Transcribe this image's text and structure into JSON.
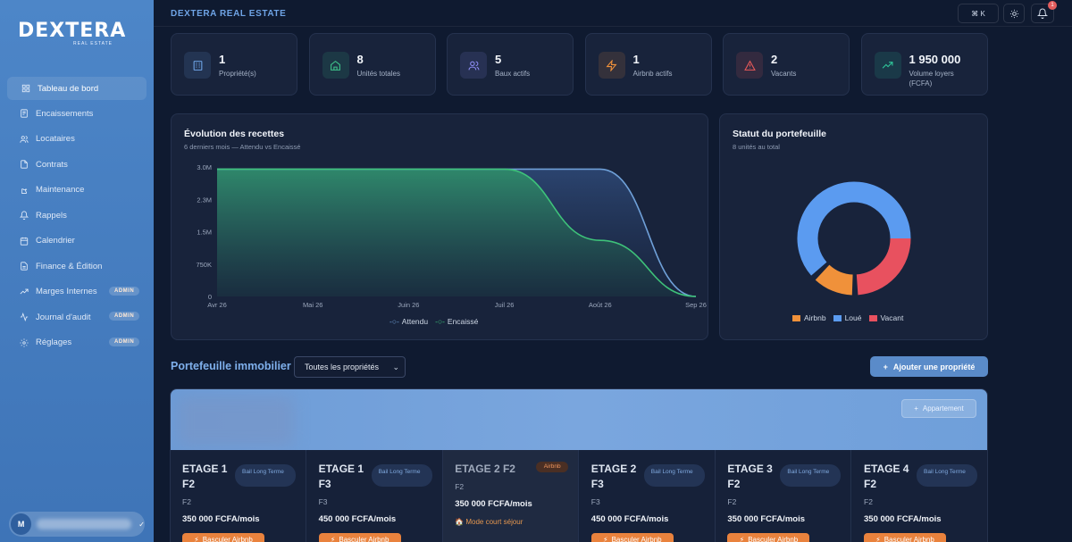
{
  "brand": {
    "logo": "DEXTERA",
    "logo_sub": "REAL ESTATE"
  },
  "sidebar": {
    "items": [
      {
        "label": "Tableau de bord",
        "icon": "grid-icon",
        "active": true
      },
      {
        "label": "Encaissements",
        "icon": "receipt-icon"
      },
      {
        "label": "Locataires",
        "icon": "users-icon"
      },
      {
        "label": "Contrats",
        "icon": "file-icon"
      },
      {
        "label": "Maintenance",
        "icon": "wrench-icon"
      },
      {
        "label": "Rappels",
        "icon": "bell-icon"
      },
      {
        "label": "Calendrier",
        "icon": "calendar-icon"
      },
      {
        "label": "Finance & Édition",
        "icon": "document-icon"
      },
      {
        "label": "Marges Internes",
        "icon": "trending-icon",
        "badge": "ADMIN"
      },
      {
        "label": "Journal d'audit",
        "icon": "activity-icon",
        "badge": "ADMIN"
      },
      {
        "label": "Réglages",
        "icon": "settings-icon",
        "badge": "ADMIN"
      }
    ],
    "user_initial": "M"
  },
  "topbar": {
    "title": "DEXTERA REAL ESTATE",
    "shortcut": "⌘  K",
    "notifications": "1"
  },
  "stats": [
    {
      "value": "1",
      "label": "Propriété(s)",
      "icon": "building-icon",
      "color": "#6fa4e6"
    },
    {
      "value": "8",
      "label": "Unités totales",
      "icon": "home-icon",
      "color": "#3fc28a"
    },
    {
      "value": "5",
      "label": "Baux actifs",
      "icon": "users-icon",
      "color": "#8c8cf2"
    },
    {
      "value": "1",
      "label": "Airbnb actifs",
      "icon": "zap-icon",
      "color": "#f0913a"
    },
    {
      "value": "2",
      "label": "Vacants",
      "icon": "alert-icon",
      "color": "#ea5a5a"
    },
    {
      "value": "1 950 000",
      "label": "Volume loyers (FCFA)",
      "icon": "trending-up-icon",
      "color": "#2fc79a"
    }
  ],
  "revenue_chart": {
    "title": "Évolution des recettes",
    "subtitle": "6 derniers mois — Attendu vs Encaissé"
  },
  "portfolio_chart": {
    "title": "Statut du portefeuille",
    "subtitle": "8 unités au total"
  },
  "chart_data": [
    {
      "type": "area",
      "title": "Évolution des recettes",
      "x": [
        "Avr 26",
        "Mai 26",
        "Juin 26",
        "Juil 26",
        "Août 26",
        "Sep 26"
      ],
      "yticks": [
        "0",
        "750K",
        "1.5M",
        "2.3M",
        "3.0M"
      ],
      "ylim": [
        0,
        3000000
      ],
      "series": [
        {
          "name": "Attendu",
          "color": "#6fa0d8",
          "values": [
            2950000,
            2950000,
            2950000,
            2950000,
            2950000,
            0
          ]
        },
        {
          "name": "Encaissé",
          "color": "#3ec27a",
          "values": [
            2950000,
            2950000,
            2950000,
            2950000,
            1300000,
            0
          ]
        }
      ],
      "legend": "bottom"
    },
    {
      "type": "pie",
      "title": "Statut du portefeuille",
      "categories": [
        "Airbnb",
        "Loué",
        "Vacant"
      ],
      "values": [
        1,
        5,
        2
      ],
      "colors": [
        "#f0913a",
        "#5b9bf0",
        "#e8515f"
      ],
      "legend": "bottom"
    }
  ],
  "portfolio": {
    "title": "Portefeuille immobilier",
    "select_value": "Toutes les propriétés",
    "add_button": "Ajouter une propriété",
    "apartment_button": "Appartement",
    "units": [
      {
        "name": "ETAGE 1 F2",
        "tag": "Bail Long Terme",
        "type": "F2",
        "price": "350 000 FCFA/mois",
        "button": "Basculer Airbnb"
      },
      {
        "name": "ETAGE 1 F3",
        "tag": "Bail Long Terme",
        "type": "F3",
        "price": "450 000 FCFA/mois",
        "button": "Basculer Airbnb"
      },
      {
        "name": "ETAGE 2 F2",
        "tag": "Airbnb",
        "type": "F2",
        "price": "350 000 FCFA/mois",
        "mode": "🏠 Mode court séjour",
        "airbnb": true
      },
      {
        "name": "ETAGE 2 F3",
        "tag": "Bail Long Terme",
        "type": "F3",
        "price": "450 000 FCFA/mois",
        "button": "Basculer Airbnb"
      },
      {
        "name": "ETAGE 3 F2",
        "tag": "Bail Long Terme",
        "type": "F2",
        "price": "350 000 FCFA/mois",
        "button": "Basculer Airbnb"
      },
      {
        "name": "ETAGE 4 F2",
        "tag": "Bail Long Terme",
        "type": "F2",
        "price": "350 000 FCFA/mois",
        "button": "Basculer Airbnb"
      }
    ]
  }
}
